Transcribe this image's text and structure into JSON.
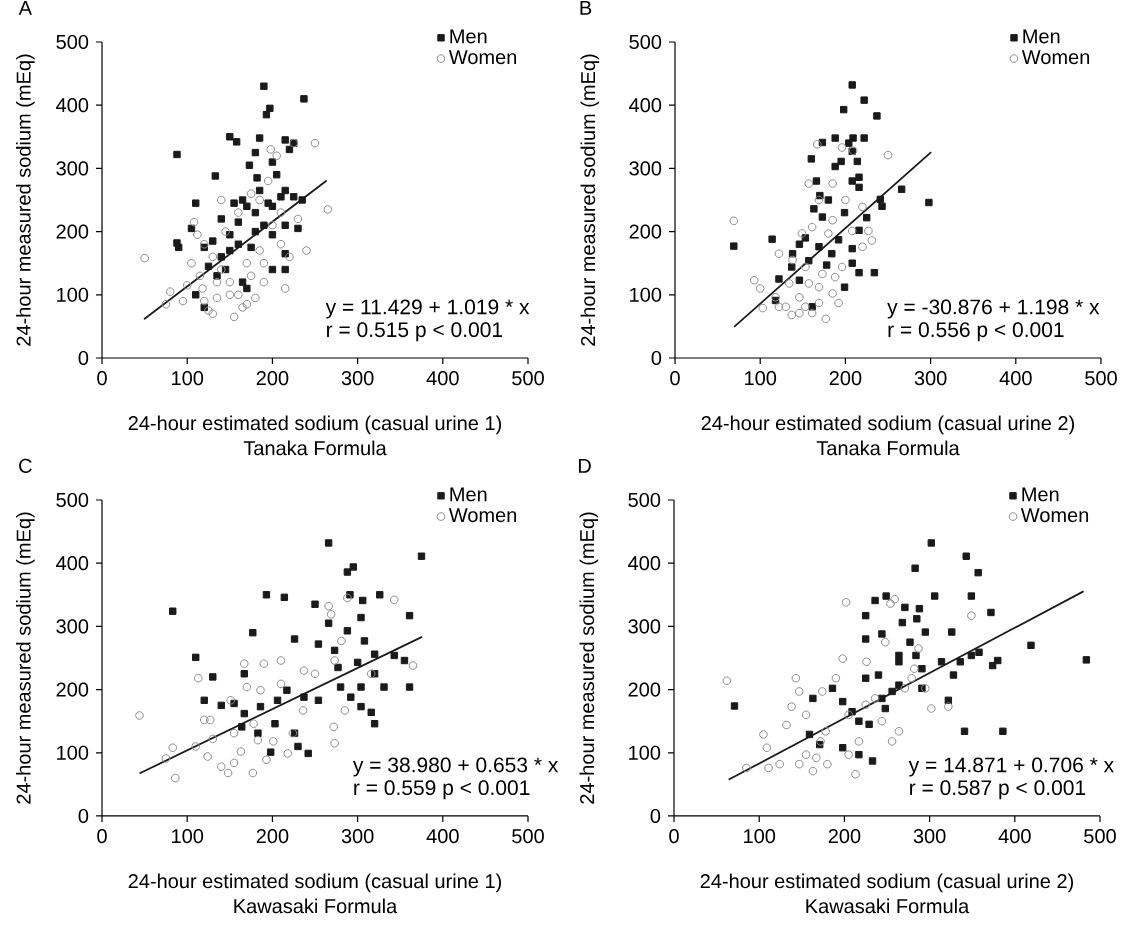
{
  "chart_data": [
    {
      "type": "scatter",
      "title": "A",
      "xlabel": "24-hour estimated sodium (casual urine 1)\nTanaka Formula",
      "ylabel": "24-hour measured sodium (mEq)",
      "xlim": [
        0,
        500
      ],
      "ylim": [
        0,
        500
      ],
      "xticks": [
        0,
        100,
        200,
        300,
        400,
        500
      ],
      "yticks": [
        0,
        100,
        200,
        300,
        400,
        500
      ],
      "legend": "top right",
      "annotations": [
        "y = 11.429 + 1.019 * x",
        "r = 0.515 p < 0.001"
      ],
      "series": [
        {
          "name": "Men",
          "color": "#1a1a1a",
          "marker": "square",
          "x": [
            190,
            237,
            197,
            193,
            150,
            158,
            185,
            215,
            88,
            180,
            225,
            173,
            200,
            133,
            182,
            110,
            88,
            90,
            105,
            155,
            165,
            170,
            195,
            210,
            225,
            235,
            215,
            205,
            220,
            185,
            120,
            130,
            140,
            150,
            160,
            175,
            180,
            190,
            200,
            215,
            230,
            125,
            135,
            145,
            165,
            170,
            200,
            215,
            120,
            110,
            215,
            180,
            200,
            140,
            150,
            160
          ],
          "values": [
            430,
            410,
            395,
            385,
            350,
            342,
            348,
            345,
            322,
            325,
            340,
            305,
            310,
            288,
            285,
            245,
            182,
            175,
            205,
            245,
            250,
            240,
            245,
            255,
            255,
            250,
            265,
            290,
            330,
            265,
            175,
            185,
            160,
            195,
            180,
            175,
            200,
            210,
            195,
            210,
            205,
            145,
            130,
            140,
            120,
            110,
            140,
            140,
            80,
            100,
            165,
            230,
            240,
            220,
            170,
            215
          ]
        },
        {
          "name": "Women",
          "color": "#8c8c8c",
          "marker": "circle",
          "x": [
            50,
            75,
            80,
            95,
            105,
            108,
            112,
            115,
            118,
            120,
            125,
            130,
            135,
            140,
            145,
            150,
            155,
            160,
            165,
            170,
            175,
            180,
            185,
            190,
            195,
            198,
            205,
            210,
            215,
            220,
            225,
            230,
            240,
            250,
            265,
            140,
            130,
            160,
            175,
            185,
            200,
            120,
            150,
            190,
            210,
            100,
            170,
            135
          ],
          "values": [
            158,
            85,
            105,
            90,
            150,
            215,
            195,
            130,
            110,
            90,
            75,
            70,
            95,
            250,
            200,
            120,
            65,
            100,
            80,
            150,
            130,
            95,
            170,
            120,
            280,
            330,
            320,
            180,
            110,
            160,
            340,
            220,
            170,
            340,
            235,
            140,
            160,
            230,
            260,
            250,
            210,
            180,
            100,
            150,
            230,
            115,
            85,
            120
          ]
        },
        {
          "type": "line",
          "color": "#1a1a1a",
          "marker": "none",
          "line_style": "solid",
          "x": [
            50,
            263
          ],
          "values": [
            62,
            280
          ]
        }
      ]
    },
    {
      "type": "scatter",
      "title": "B",
      "xlabel": "24-hour estimated sodium (casual urine 2)\nTanaka Formula",
      "ylabel": "24-hour measured sodium (mEq)",
      "xlim": [
        0,
        500
      ],
      "ylim": [
        0,
        500
      ],
      "xticks": [
        0,
        100,
        200,
        300,
        400,
        500
      ],
      "yticks": [
        0,
        100,
        200,
        300,
        400,
        500
      ],
      "legend": "top right",
      "annotations": [
        "y = -30.876 + 1.198 * x",
        "r = 0.556 p < 0.001"
      ],
      "series": [
        {
          "name": "Men",
          "color": "#1a1a1a",
          "marker": "square",
          "x": [
            208,
            222,
            198,
            237,
            188,
            209,
            204,
            222,
            173,
            160,
            208,
            195,
            214,
            188,
            166,
            208,
            216,
            170,
            216,
            266,
            298,
            241,
            243,
            225,
            69,
            114,
            122,
            118,
            146,
            169,
            184,
            157,
            137,
            146,
            178,
            192,
            216,
            208,
            216,
            234,
            199,
            161,
            138,
            153,
            163,
            180,
            199,
            173,
            208
          ],
          "values": [
            432,
            408,
            393,
            383,
            348,
            348,
            340,
            348,
            341,
            315,
            327,
            311,
            311,
            303,
            280,
            280,
            286,
            257,
            270,
            267,
            246,
            251,
            240,
            222,
            177,
            188,
            125,
            91,
            180,
            176,
            165,
            154,
            144,
            123,
            147,
            187,
            202,
            150,
            135,
            135,
            112,
            81,
            165,
            190,
            236,
            250,
            230,
            223,
            173
          ]
        },
        {
          "name": "Women",
          "color": "#8c8c8c",
          "marker": "circle",
          "x": [
            69,
            93,
            100,
            103,
            118,
            122,
            130,
            137,
            146,
            153,
            161,
            169,
            177,
            185,
            192,
            167,
            196,
            209,
            250,
            185,
            200,
            220,
            227,
            231,
            220,
            208,
            161,
            149,
            138,
            153,
            173,
            188,
            169,
            157,
            196,
            134,
            122,
            146,
            180,
            169,
            157,
            185
          ],
          "values": [
            217,
            123,
            110,
            79,
            96,
            165,
            81,
            68,
            96,
            81,
            71,
            87,
            62,
            102,
            87,
            338,
            333,
            328,
            321,
            276,
            250,
            239,
            201,
            186,
            176,
            201,
            207,
            197,
            155,
            144,
            133,
            128,
            112,
            118,
            144,
            118,
            81,
            71,
            197,
            250,
            276,
            218
          ]
        },
        {
          "type": "line",
          "color": "#1a1a1a",
          "marker": "none",
          "line_style": "solid",
          "x": [
            70,
            300
          ],
          "values": [
            50,
            325
          ]
        }
      ]
    },
    {
      "type": "scatter",
      "title": "C",
      "xlabel": "24-hour estimated sodium (casual urine 1)\nKawasaki Formula",
      "ylabel": "24-hour measured sodium (mEq)",
      "xlim": [
        0,
        500
      ],
      "ylim": [
        0,
        500
      ],
      "xticks": [
        0,
        100,
        200,
        300,
        400,
        500
      ],
      "yticks": [
        0,
        100,
        200,
        300,
        400,
        500
      ],
      "legend": "top right",
      "annotations": [
        "y = 38.980 + 0.653 * x",
        "r = 0.559 p < 0.001"
      ],
      "series": [
        {
          "name": "Men",
          "color": "#1a1a1a",
          "marker": "square",
          "x": [
            266,
            295,
            288,
            375,
            193,
            214,
            250,
            266,
            83,
            177,
            291,
            306,
            326,
            304,
            288,
            361,
            226,
            254,
            273,
            308,
            277,
            300,
            320,
            343,
            355,
            320,
            331,
            361,
            110,
            130,
            120,
            140,
            155,
            167,
            186,
            206,
            217,
            237,
            254,
            280,
            292,
            304,
            316,
            320,
            304,
            164,
            183,
            203,
            226,
            242,
            230,
            198,
            167
          ],
          "values": [
            432,
            394,
            386,
            411,
            350,
            346,
            335,
            305,
            324,
            290,
            350,
            341,
            350,
            314,
            293,
            317,
            280,
            272,
            262,
            277,
            235,
            243,
            256,
            254,
            246,
            225,
            204,
            204,
            251,
            220,
            183,
            175,
            178,
            162,
            173,
            183,
            199,
            188,
            183,
            204,
            188,
            173,
            164,
            146,
            204,
            141,
            131,
            146,
            131,
            99,
            110,
            101,
            225
          ]
        },
        {
          "name": "Women",
          "color": "#8c8c8c",
          "marker": "circle",
          "x": [
            44,
            75,
            83,
            86,
            110,
            113,
            120,
            124,
            130,
            140,
            148,
            155,
            163,
            167,
            177,
            183,
            193,
            201,
            210,
            218,
            224,
            236,
            250,
            266,
            269,
            288,
            281,
            273,
            272,
            273,
            285,
            343,
            365,
            316,
            190,
            170,
            151,
            186,
            210,
            237,
            178,
            155,
            127
          ],
          "values": [
            159,
            91,
            108,
            60,
            110,
            218,
            152,
            94,
            122,
            78,
            68,
            84,
            102,
            241,
            68,
            120,
            89,
            118,
            246,
            99,
            131,
            167,
            225,
            332,
            319,
            345,
            277,
            246,
            141,
            115,
            167,
            342,
            238,
            225,
            241,
            204,
            183,
            199,
            209,
            230,
            146,
            131,
            152
          ]
        },
        {
          "type": "line",
          "color": "#1a1a1a",
          "marker": "none",
          "line_style": "solid",
          "x": [
            45,
            375
          ],
          "values": [
            68,
            283
          ]
        }
      ]
    },
    {
      "type": "scatter",
      "title": "D",
      "xlabel": "24-hour estimated sodium (casual urine 2)\nKawasaki Formula",
      "ylabel": "24-hour measured sodium (mEq)",
      "xlim": [
        0,
        500
      ],
      "ylim": [
        0,
        500
      ],
      "xticks": [
        0,
        100,
        200,
        300,
        400,
        500
      ],
      "yticks": [
        0,
        100,
        200,
        300,
        400,
        500
      ],
      "legend": "top right",
      "annotations": [
        "y = 14.871 + 0.706 * x",
        "r = 0.587 p < 0.001"
      ],
      "series": [
        {
          "name": "Men",
          "color": "#1a1a1a",
          "marker": "square",
          "x": [
            302,
            343,
            283,
            357,
            236,
            249,
            271,
            288,
            306,
            349,
            372,
            225,
            268,
            285,
            295,
            326,
            225,
            244,
            264,
            277,
            284,
            264,
            291,
            314,
            336,
            349,
            358,
            374,
            380,
            419,
            484,
            341,
            386,
            328,
            322,
            71,
            163,
            186,
            198,
            209,
            217,
            229,
            244,
            256,
            233,
            217,
            198,
            248,
            264,
            291,
            159,
            171,
            225,
            240
          ],
          "values": [
            432,
            411,
            392,
            385,
            341,
            348,
            330,
            328,
            348,
            348,
            322,
            317,
            306,
            312,
            291,
            291,
            280,
            288,
            254,
            275,
            254,
            244,
            233,
            244,
            244,
            254,
            259,
            238,
            246,
            270,
            247,
            134,
            134,
            223,
            183,
            174,
            186,
            202,
            181,
            165,
            150,
            145,
            186,
            197,
            87,
            97,
            108,
            170,
            207,
            202,
            129,
            113,
            218,
            223
          ]
        },
        {
          "name": "Women",
          "color": "#8c8c8c",
          "marker": "circle",
          "x": [
            62,
            85,
            105,
            109,
            111,
            124,
            132,
            138,
            143,
            147,
            147,
            155,
            163,
            167,
            172,
            178,
            180,
            190,
            198,
            202,
            205,
            213,
            217,
            226,
            236,
            248,
            254,
            259,
            264,
            271,
            279,
            282,
            287,
            295,
            302,
            322,
            349,
            174,
            155,
            205,
            225,
            244,
            256
          ],
          "values": [
            214,
            76,
            129,
            108,
            76,
            82,
            144,
            173,
            218,
            197,
            82,
            97,
            71,
            92,
            118,
            134,
            82,
            218,
            249,
            338,
            97,
            66,
            118,
            244,
            186,
            275,
            336,
            343,
            134,
            202,
            218,
            233,
            265,
            202,
            170,
            173,
            317,
            197,
            160,
            160,
            176,
            150,
            118
          ]
        },
        {
          "type": "line",
          "color": "#1a1a1a",
          "marker": "none",
          "line_style": "solid",
          "x": [
            65,
            480
          ],
          "values": [
            58,
            355
          ]
        }
      ]
    }
  ]
}
